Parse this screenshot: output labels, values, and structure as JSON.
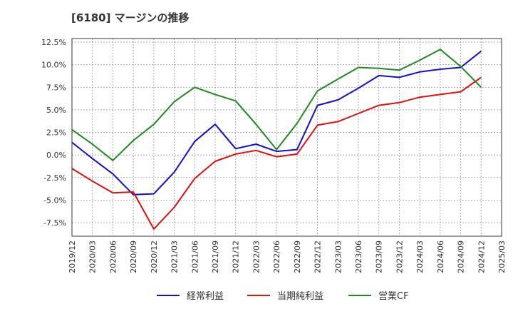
{
  "title": "[6180]  マージンの推移",
  "chart_data": {
    "type": "line",
    "title": "[6180]  マージンの推移",
    "xlabel": "",
    "ylabel": "",
    "x": [
      "2019/12",
      "2020/03",
      "2020/06",
      "2020/09",
      "2020/12",
      "2021/03",
      "2021/06",
      "2021/09",
      "2021/12",
      "2022/03",
      "2022/06",
      "2022/09",
      "2022/12",
      "2023/03",
      "2023/06",
      "2023/09",
      "2023/12",
      "2024/03",
      "2024/06",
      "2024/09",
      "2024/12",
      "2025/03"
    ],
    "ylim": [
      -9.0,
      12.9
    ],
    "yticks": [
      -7.5,
      -5.0,
      -2.5,
      0.0,
      2.5,
      5.0,
      7.5,
      10.0,
      12.5
    ],
    "ytick_labels": [
      "-7.5%",
      "-5.0%",
      "-2.5%",
      "0.0%",
      "2.5%",
      "5.0%",
      "7.5%",
      "10.0%",
      "12.5%"
    ],
    "grid": true,
    "legend_position": "bottom",
    "series": [
      {
        "name": "経常利益",
        "color": "#1111cc",
        "values": [
          1.4,
          -0.4,
          -2.1,
          -4.4,
          -4.3,
          -1.9,
          1.5,
          3.4,
          0.7,
          1.2,
          0.4,
          0.6,
          5.5,
          6.1,
          7.4,
          8.8,
          8.6,
          9.2,
          9.5,
          9.7,
          11.5,
          null
        ]
      },
      {
        "name": "当期純利益",
        "color": "#dd1111",
        "values": [
          -1.5,
          -2.9,
          -4.2,
          -4.1,
          -8.2,
          -5.8,
          -2.6,
          -0.7,
          0.1,
          0.5,
          -0.2,
          0.1,
          3.3,
          3.7,
          4.6,
          5.5,
          5.8,
          6.4,
          6.7,
          7.0,
          8.6,
          null
        ]
      },
      {
        "name": "営業CF",
        "color": "#228822",
        "values": [
          2.8,
          1.2,
          -0.6,
          1.6,
          3.4,
          5.9,
          7.5,
          6.7,
          6.0,
          3.4,
          0.6,
          3.5,
          7.1,
          8.4,
          9.7,
          9.6,
          9.4,
          10.5,
          11.7,
          9.8,
          7.5,
          null
        ]
      }
    ]
  }
}
